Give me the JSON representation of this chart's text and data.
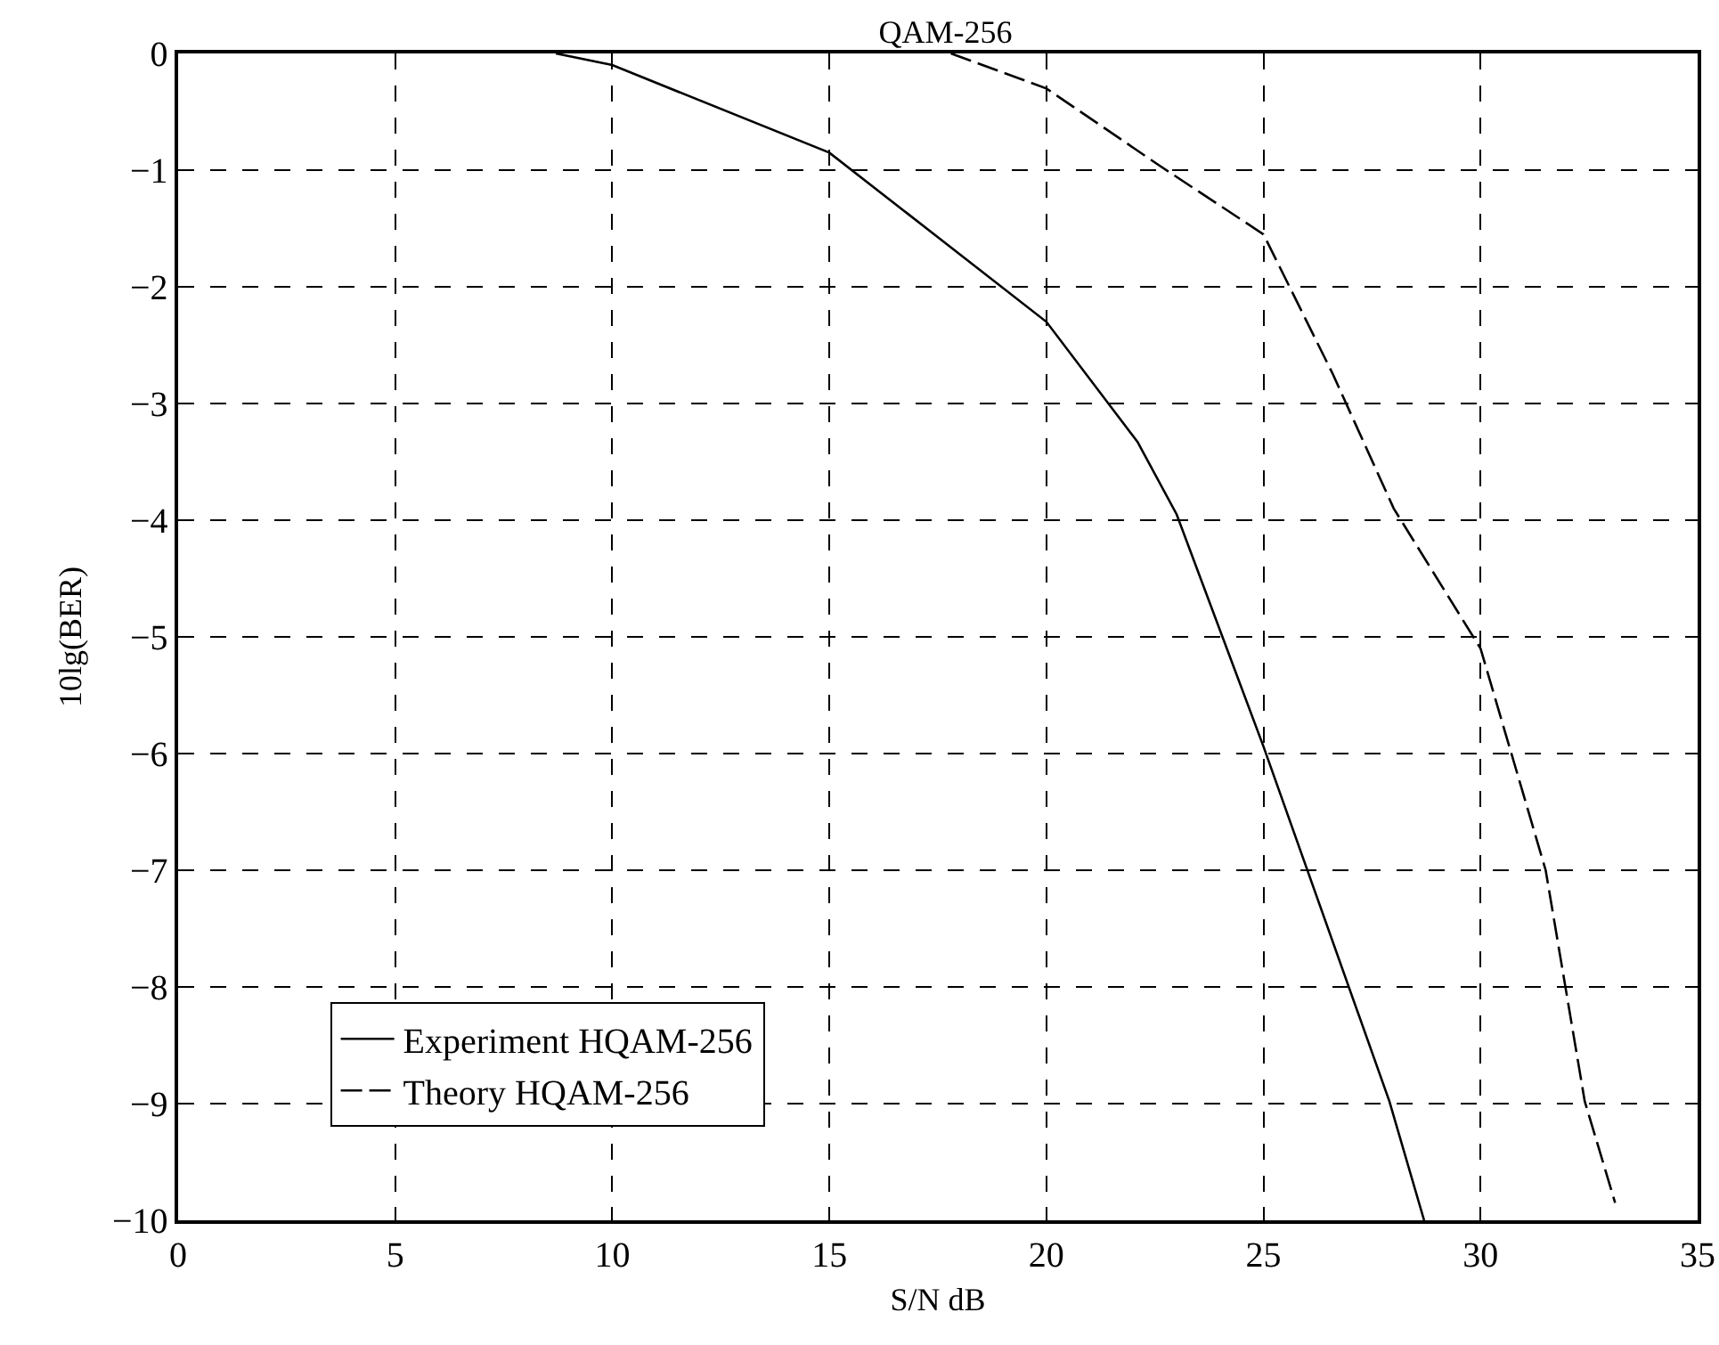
{
  "chart_data": {
    "type": "line",
    "title": "QAM-256",
    "xlabel": "S/N dB",
    "ylabel": "10lg(BER)",
    "xlim": [
      0,
      35
    ],
    "xticks": [
      0,
      5,
      10,
      15,
      20,
      25,
      30,
      35
    ],
    "ylim": [
      -10,
      0
    ],
    "yticks": [
      {
        "value": 0,
        "label": "0"
      },
      {
        "value": -1,
        "label": "−1"
      },
      {
        "value": -2,
        "label": "−2"
      },
      {
        "value": -3,
        "label": "−3"
      },
      {
        "value": -4,
        "label": "−4"
      },
      {
        "value": -5,
        "label": "−5"
      },
      {
        "value": -6,
        "label": "−6"
      },
      {
        "value": -7,
        "label": "−7"
      },
      {
        "value": -8,
        "label": "−8"
      },
      {
        "value": -9,
        "label": "−9"
      },
      {
        "value": -10,
        "label": "−10"
      }
    ],
    "grid": true,
    "legend": "bottom left",
    "marker": "none",
    "series": [
      {
        "name": "Experiment HQAM-256",
        "color": "#000000",
        "line_style": "solid",
        "x": [
          8.7,
          10,
          15,
          20,
          22.1,
          23,
          25,
          27.9,
          28.7
        ],
        "values": [
          0,
          -0.1,
          -0.85,
          -2.3,
          -3.33,
          -3.95,
          -5.94,
          -8.98,
          -10
        ]
      },
      {
        "name": "Theory HQAM-256",
        "color": "#000000",
        "line_style": "dashed",
        "x": [
          17.8,
          20,
          22.6,
          25,
          26.6,
          28,
          30,
          31.5,
          32.4,
          33.1
        ],
        "values": [
          0,
          -0.3,
          -0.96,
          -1.55,
          -2.75,
          -3.9,
          -5.1,
          -7,
          -8.98,
          -9.85
        ]
      }
    ]
  }
}
